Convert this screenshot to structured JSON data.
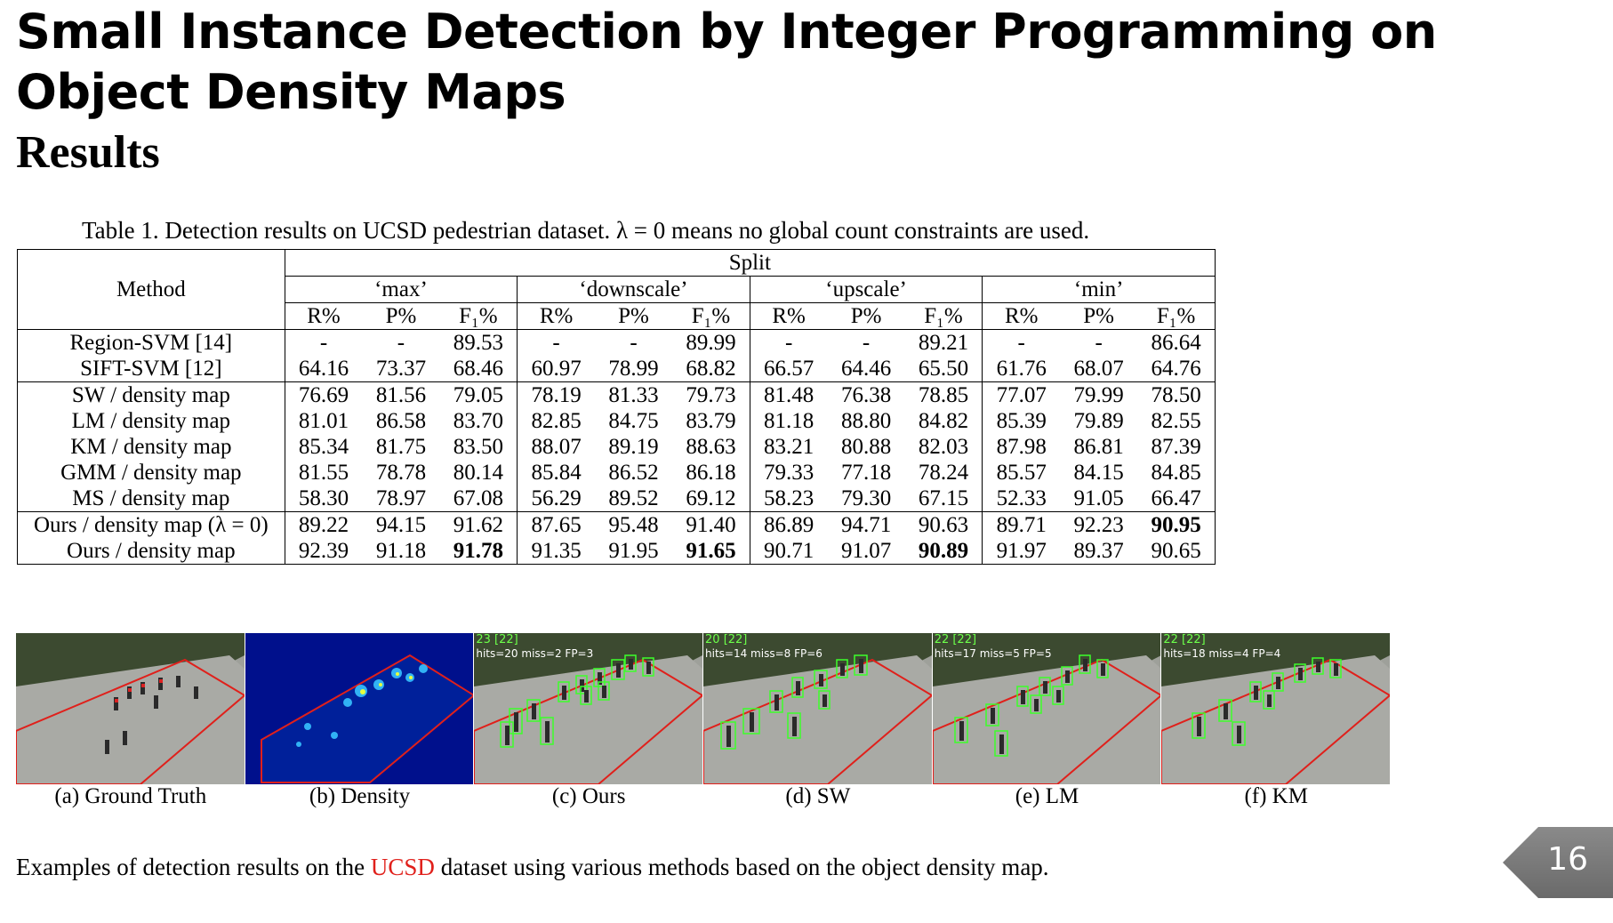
{
  "slide": {
    "title": "Small Instance Detection by Integer Programming on Object Density Maps",
    "subtitle": "Results",
    "table_caption": "Table 1. Detection results on UCSD pedestrian dataset. λ = 0 means no global count constraints are used.",
    "page_number": "16",
    "caption_prefix": "Examples of detection results on the ",
    "caption_highlight": "UCSD",
    "caption_suffix": " dataset using various methods based on the object density map."
  },
  "table": {
    "method_header": "Method",
    "split_header": "Split",
    "groups": [
      "‘max’",
      "‘downscale’",
      "‘upscale’",
      "‘min’"
    ],
    "sub_headers": [
      "R%",
      "P%",
      "F₁%"
    ],
    "rows": [
      {
        "method": "Region-SVM [14]",
        "cells": [
          "-",
          "-",
          "89.53",
          "-",
          "-",
          "89.99",
          "-",
          "-",
          "89.21",
          "-",
          "-",
          "86.64"
        ],
        "bold": []
      },
      {
        "method": "SIFT-SVM [12]",
        "cells": [
          "64.16",
          "73.37",
          "68.46",
          "60.97",
          "78.99",
          "68.82",
          "66.57",
          "64.46",
          "65.50",
          "61.76",
          "68.07",
          "64.76"
        ],
        "bold": []
      },
      {
        "method": "SW / density map",
        "cells": [
          "76.69",
          "81.56",
          "79.05",
          "78.19",
          "81.33",
          "79.73",
          "81.48",
          "76.38",
          "78.85",
          "77.07",
          "79.99",
          "78.50"
        ],
        "bold": []
      },
      {
        "method": "LM / density map",
        "cells": [
          "81.01",
          "86.58",
          "83.70",
          "82.85",
          "84.75",
          "83.79",
          "81.18",
          "88.80",
          "84.82",
          "85.39",
          "79.89",
          "82.55"
        ],
        "bold": []
      },
      {
        "method": "KM / density map",
        "cells": [
          "85.34",
          "81.75",
          "83.50",
          "88.07",
          "89.19",
          "88.63",
          "83.21",
          "80.88",
          "82.03",
          "87.98",
          "86.81",
          "87.39"
        ],
        "bold": []
      },
      {
        "method": "GMM / density map",
        "cells": [
          "81.55",
          "78.78",
          "80.14",
          "85.84",
          "86.52",
          "86.18",
          "79.33",
          "77.18",
          "78.24",
          "85.57",
          "84.15",
          "84.85"
        ],
        "bold": []
      },
      {
        "method": "MS / density map",
        "cells": [
          "58.30",
          "78.97",
          "67.08",
          "56.29",
          "89.52",
          "69.12",
          "58.23",
          "79.30",
          "67.15",
          "52.33",
          "91.05",
          "66.47"
        ],
        "bold": []
      },
      {
        "method": "Ours / density map (λ = 0)",
        "cells": [
          "89.22",
          "94.15",
          "91.62",
          "87.65",
          "95.48",
          "91.40",
          "86.89",
          "94.71",
          "90.63",
          "89.71",
          "92.23",
          "90.95"
        ],
        "bold": [
          11
        ]
      },
      {
        "method": "Ours / density map",
        "cells": [
          "92.39",
          "91.18",
          "91.78",
          "91.35",
          "91.95",
          "91.65",
          "90.71",
          "91.07",
          "90.89",
          "91.97",
          "89.37",
          "90.65"
        ],
        "bold": [
          2,
          5,
          8
        ]
      }
    ]
  },
  "figure": {
    "panels": [
      {
        "label": "(a) Ground Truth",
        "line1": "",
        "line2": ""
      },
      {
        "label": "(b) Density",
        "line1": "",
        "line2": ""
      },
      {
        "label": "(c) Ours",
        "line1": "23 [22]",
        "line2": "hits=20 miss=2 FP=3"
      },
      {
        "label": "(d) SW",
        "line1": "20 [22]",
        "line2": "hits=14 miss=8 FP=6"
      },
      {
        "label": "(e) LM",
        "line1": "22 [22]",
        "line2": "hits=17 miss=5 FP=5"
      },
      {
        "label": "(f) KM",
        "line1": "22 [22]",
        "line2": "hits=18 miss=4 FP=4"
      }
    ]
  }
}
